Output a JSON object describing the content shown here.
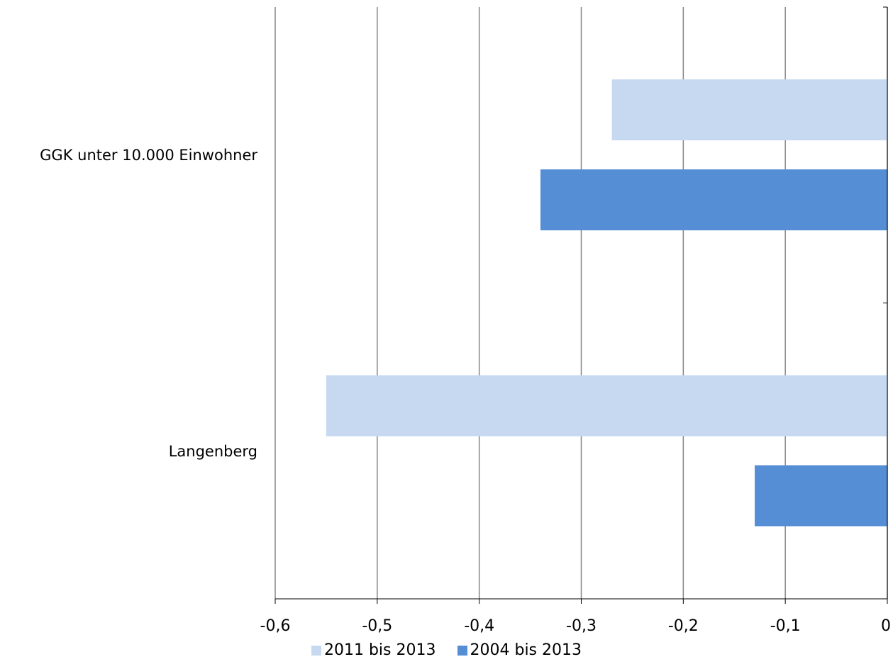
{
  "chart_data": {
    "type": "bar",
    "orientation": "horizontal",
    "categories": [
      "GGK unter 10.000 Einwohner",
      "Langenberg"
    ],
    "series": [
      {
        "name": "2011 bis 2013",
        "color": "#c6d9f1",
        "values": [
          -0.27,
          -0.55
        ]
      },
      {
        "name": "2004 bis 2013",
        "color": "#558ed5",
        "values": [
          -0.34,
          -0.13
        ]
      }
    ],
    "xlim": [
      -0.6,
      0
    ],
    "xticks": [
      "-0,6",
      "-0,5",
      "-0,4",
      "-0,3",
      "-0,2",
      "-0,1",
      "0"
    ],
    "xtick_values": [
      -0.6,
      -0.5,
      -0.4,
      -0.3,
      -0.2,
      -0.1,
      0
    ],
    "grid": "vertical",
    "legend": "bottom",
    "title": "",
    "xlabel": "",
    "ylabel": ""
  }
}
